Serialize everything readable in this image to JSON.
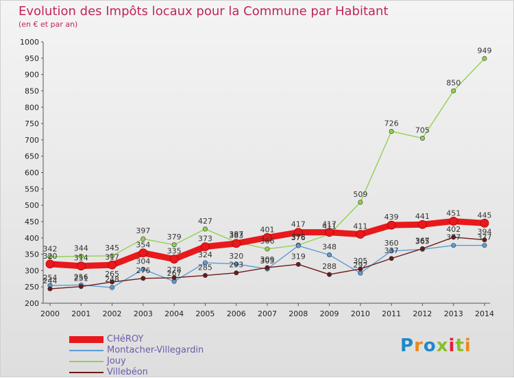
{
  "header": {
    "title": "Evolution des Impôts locaux pour la Commune par Habitant",
    "subtitle": "(en € et par an)"
  },
  "logo": {
    "text": "Proxiti",
    "letters": [
      "P",
      "r",
      "o",
      "x",
      "i",
      "t",
      "i"
    ]
  },
  "chart_data": {
    "type": "line",
    "title": "Evolution des Impôts locaux pour la Commune par Habitant",
    "subtitle": "(en € et par an)",
    "xlabel": "",
    "ylabel": "",
    "x": [
      "2000",
      "2001",
      "2002",
      "2003",
      "2004",
      "2005",
      "2006",
      "2007",
      "2008",
      "2009",
      "2010",
      "2011",
      "2012",
      "2013",
      "2014"
    ],
    "ylim": [
      200,
      1000
    ],
    "yticks": [
      200,
      250,
      300,
      350,
      400,
      450,
      500,
      550,
      600,
      650,
      700,
      750,
      800,
      850,
      900,
      950,
      1000
    ],
    "grid": false,
    "legend_position": "bottom-left",
    "series": [
      {
        "name": "CHéROY",
        "color": "#e8191c",
        "values": [
          320,
          314,
          317,
          354,
          335,
          373,
          383,
          401,
          417,
          417,
          411,
          439,
          441,
          451,
          445
        ],
        "labels": [
          "320",
          "314",
          "317",
          "354",
          "335",
          "373",
          "383",
          "401",
          "417",
          "417",
          "411",
          "439",
          "441",
          "451",
          "445"
        ]
      },
      {
        "name": "Montacher-Villegardin",
        "color": "#5b9bd5",
        "values": [
          254,
          256,
          248,
          304,
          267,
          324,
          320,
          305,
          376,
          348,
          292,
          360,
          365,
          377,
          377
        ],
        "labels": [
          "254",
          "256",
          "248",
          "304",
          "267",
          "324",
          "320",
          "305",
          "376",
          "348",
          "292",
          "360",
          "365",
          "377",
          "377"
        ]
      },
      {
        "name": "Jouy",
        "color": "#92d050",
        "values": [
          342,
          344,
          345,
          397,
          379,
          427,
          387,
          366,
          378,
          411,
          509,
          726,
          705,
          850,
          949
        ],
        "labels": [
          "342",
          "344",
          "345",
          "397",
          "379",
          "427",
          "387",
          "366",
          "378",
          "411",
          "509",
          "726",
          "705",
          "850",
          "949"
        ]
      },
      {
        "name": "Villebéon",
        "color": "#6b1a1a",
        "values": [
          244,
          251,
          265,
          276,
          278,
          285,
          293,
          309,
          319,
          288,
          305,
          337,
          367,
          402,
          394
        ],
        "labels": [
          "244",
          "251",
          "265",
          "276",
          "278",
          "285",
          "293",
          "309",
          "319",
          "288",
          "305",
          "337",
          "367",
          "402",
          "394"
        ]
      }
    ]
  }
}
